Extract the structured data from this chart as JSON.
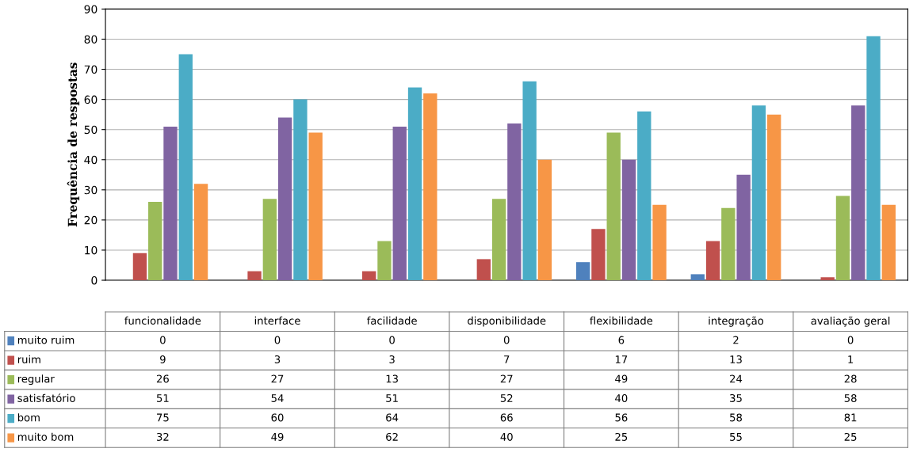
{
  "chart_data": {
    "type": "bar",
    "ylabel": "Frequência de respostas",
    "categories": [
      "funcionalidade",
      "interface",
      "facilidade",
      "disponibilidade",
      "flexibilidade",
      "integração",
      "avaliação geral"
    ],
    "series": [
      {
        "name": "muito ruim",
        "color": "#4f81bd",
        "values": [
          0,
          0,
          0,
          0,
          6,
          2,
          0
        ]
      },
      {
        "name": "ruim",
        "color": "#c0504d",
        "values": [
          9,
          3,
          3,
          7,
          17,
          13,
          1
        ]
      },
      {
        "name": "regular",
        "color": "#9bbb59",
        "values": [
          26,
          27,
          13,
          27,
          49,
          24,
          28
        ]
      },
      {
        "name": "satisfatório",
        "color": "#8064a2",
        "values": [
          51,
          54,
          51,
          52,
          40,
          35,
          58
        ]
      },
      {
        "name": "bom",
        "color": "#4bacc6",
        "values": [
          75,
          60,
          64,
          66,
          56,
          58,
          81
        ]
      },
      {
        "name": "muito bom",
        "color": "#f79646",
        "values": [
          32,
          49,
          62,
          40,
          25,
          55,
          25
        ]
      }
    ],
    "ylim": [
      0,
      90
    ],
    "yticks": [
      0,
      10,
      20,
      30,
      40,
      50,
      60,
      70,
      80,
      90
    ],
    "grid": "y",
    "legend": "bottom",
    "data_labels": true
  }
}
